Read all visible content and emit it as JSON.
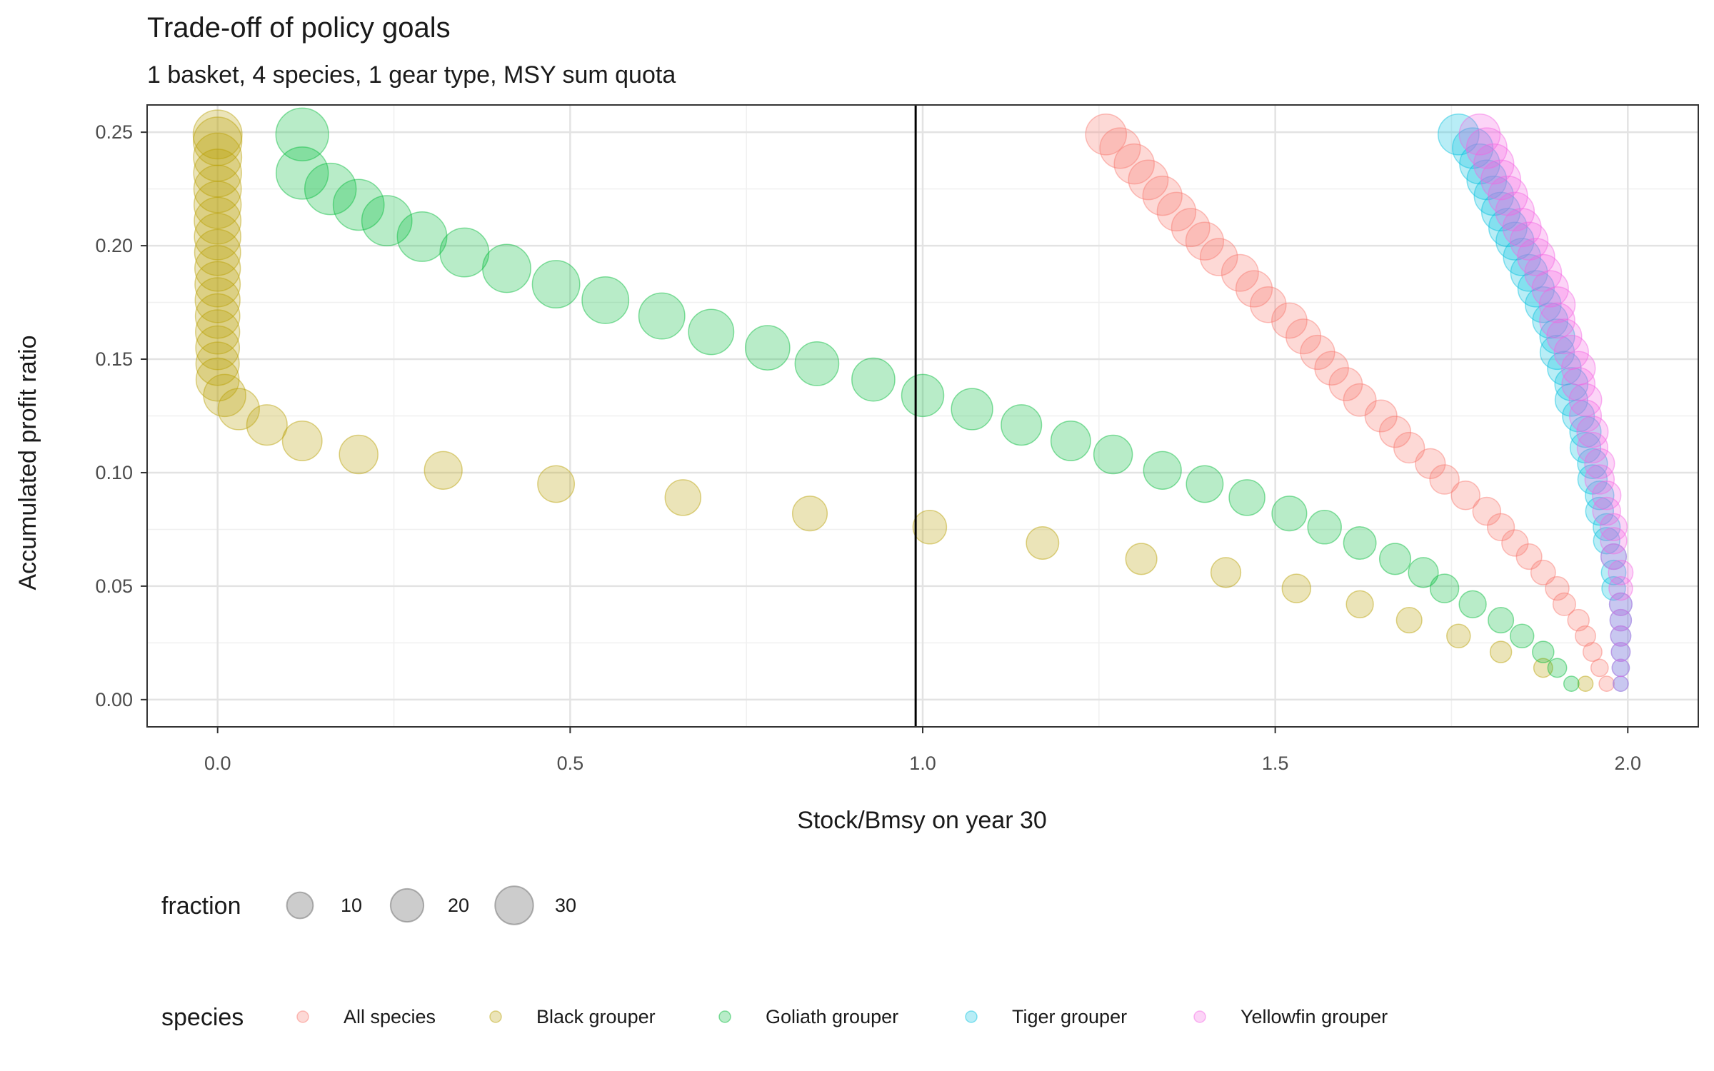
{
  "chart_data": {
    "type": "scatter",
    "title": "Trade-off of policy goals",
    "subtitle": "1 basket, 4 species, 1 gear type, MSY sum quota",
    "xlabel": "Stock/Bmsy on year 30",
    "ylabel": "Accumulated profit ratio",
    "xlim": [
      -0.1,
      2.1
    ],
    "ylim": [
      -0.012,
      0.262
    ],
    "x_ticks": [
      0.0,
      0.5,
      1.0,
      1.5,
      2.0
    ],
    "x_tick_labels": [
      "0.0",
      "0.5",
      "1.0",
      "1.5",
      "2.0"
    ],
    "y_ticks": [
      0.0,
      0.05,
      0.1,
      0.15,
      0.2,
      0.25
    ],
    "y_tick_labels": [
      "0.00",
      "0.05",
      "0.10",
      "0.15",
      "0.20",
      "0.25"
    ],
    "grid": true,
    "reference_line": {
      "orientation": "vertical",
      "x": 0.99,
      "color": "#000000"
    },
    "size_legend": {
      "title": "fraction",
      "values": [
        10,
        20,
        30
      ],
      "labels": [
        "10",
        "20",
        "30"
      ],
      "color": "#7f7f7f",
      "placement": "bottom"
    },
    "series_legend": {
      "title": "species",
      "placement": "bottom"
    },
    "point_opacity": 0.28,
    "series": [
      {
        "name": "All species",
        "color": "#F8766D",
        "points": [
          [
            1.97,
            0.007,
            1
          ],
          [
            1.96,
            0.014,
            2
          ],
          [
            1.95,
            0.021,
            3
          ],
          [
            1.94,
            0.028,
            4
          ],
          [
            1.93,
            0.035,
            5
          ],
          [
            1.91,
            0.042,
            6
          ],
          [
            1.9,
            0.049,
            7
          ],
          [
            1.88,
            0.056,
            8
          ],
          [
            1.86,
            0.063,
            9
          ],
          [
            1.84,
            0.069,
            10
          ],
          [
            1.82,
            0.076,
            11
          ],
          [
            1.8,
            0.083,
            12
          ],
          [
            1.77,
            0.09,
            13
          ],
          [
            1.74,
            0.097,
            14
          ],
          [
            1.72,
            0.104,
            15
          ],
          [
            1.69,
            0.111,
            16
          ],
          [
            1.67,
            0.118,
            17
          ],
          [
            1.65,
            0.125,
            18
          ],
          [
            1.62,
            0.132,
            19
          ],
          [
            1.6,
            0.139,
            20
          ],
          [
            1.58,
            0.146,
            21
          ],
          [
            1.56,
            0.153,
            22
          ],
          [
            1.54,
            0.16,
            23
          ],
          [
            1.52,
            0.167,
            24
          ],
          [
            1.49,
            0.174,
            25
          ],
          [
            1.47,
            0.181,
            26
          ],
          [
            1.45,
            0.188,
            27
          ],
          [
            1.42,
            0.195,
            28
          ],
          [
            1.4,
            0.202,
            29
          ],
          [
            1.38,
            0.208,
            30
          ],
          [
            1.36,
            0.215,
            31
          ],
          [
            1.34,
            0.222,
            32
          ],
          [
            1.32,
            0.229,
            33
          ],
          [
            1.3,
            0.236,
            34
          ],
          [
            1.28,
            0.243,
            35
          ],
          [
            1.26,
            0.249,
            36
          ]
        ]
      },
      {
        "name": "Black grouper",
        "color": "#B79F00",
        "points": [
          [
            1.94,
            0.007,
            1
          ],
          [
            1.88,
            0.014,
            3
          ],
          [
            1.82,
            0.021,
            5
          ],
          [
            1.76,
            0.028,
            7
          ],
          [
            1.69,
            0.035,
            9
          ],
          [
            1.62,
            0.042,
            11
          ],
          [
            1.53,
            0.049,
            13
          ],
          [
            1.43,
            0.056,
            15
          ],
          [
            1.31,
            0.062,
            17
          ],
          [
            1.17,
            0.069,
            19
          ],
          [
            1.01,
            0.076,
            21
          ],
          [
            0.84,
            0.082,
            23
          ],
          [
            0.66,
            0.089,
            25
          ],
          [
            0.48,
            0.095,
            27
          ],
          [
            0.32,
            0.101,
            29
          ],
          [
            0.2,
            0.108,
            31
          ],
          [
            0.12,
            0.114,
            33
          ],
          [
            0.07,
            0.121,
            35
          ],
          [
            0.03,
            0.128,
            37
          ],
          [
            0.01,
            0.134,
            39
          ],
          [
            0.0,
            0.141,
            41
          ],
          [
            0.0,
            0.148,
            42
          ],
          [
            0.0,
            0.155,
            43
          ],
          [
            0.0,
            0.162,
            44
          ],
          [
            0.0,
            0.169,
            45
          ],
          [
            0.0,
            0.176,
            46
          ],
          [
            0.0,
            0.183,
            47
          ],
          [
            0.0,
            0.19,
            48
          ],
          [
            0.0,
            0.197,
            49
          ],
          [
            0.0,
            0.204,
            50
          ],
          [
            0.0,
            0.211,
            51
          ],
          [
            0.0,
            0.218,
            52
          ],
          [
            0.0,
            0.225,
            53
          ],
          [
            0.0,
            0.232,
            54
          ],
          [
            0.0,
            0.239,
            55
          ],
          [
            0.0,
            0.246,
            56
          ],
          [
            0.0,
            0.249,
            57
          ]
        ]
      },
      {
        "name": "Goliath grouper",
        "color": "#00BA38",
        "points": [
          [
            1.92,
            0.007,
            1
          ],
          [
            1.9,
            0.014,
            3
          ],
          [
            1.88,
            0.021,
            5
          ],
          [
            1.85,
            0.028,
            7
          ],
          [
            1.82,
            0.035,
            9
          ],
          [
            1.78,
            0.042,
            11
          ],
          [
            1.74,
            0.049,
            13
          ],
          [
            1.71,
            0.056,
            15
          ],
          [
            1.67,
            0.062,
            17
          ],
          [
            1.62,
            0.069,
            19
          ],
          [
            1.57,
            0.076,
            21
          ],
          [
            1.52,
            0.082,
            23
          ],
          [
            1.46,
            0.089,
            25
          ],
          [
            1.4,
            0.095,
            27
          ],
          [
            1.34,
            0.101,
            29
          ],
          [
            1.27,
            0.108,
            31
          ],
          [
            1.21,
            0.114,
            33
          ],
          [
            1.14,
            0.121,
            35
          ],
          [
            1.07,
            0.128,
            37
          ],
          [
            1.0,
            0.134,
            39
          ],
          [
            0.93,
            0.141,
            41
          ],
          [
            0.85,
            0.148,
            43
          ],
          [
            0.78,
            0.155,
            45
          ],
          [
            0.7,
            0.162,
            47
          ],
          [
            0.63,
            0.169,
            49
          ],
          [
            0.55,
            0.176,
            51
          ],
          [
            0.48,
            0.183,
            53
          ],
          [
            0.41,
            0.19,
            55
          ],
          [
            0.35,
            0.197,
            57
          ],
          [
            0.29,
            0.204,
            59
          ],
          [
            0.24,
            0.211,
            61
          ],
          [
            0.2,
            0.218,
            63
          ],
          [
            0.16,
            0.225,
            65
          ],
          [
            0.12,
            0.232,
            67
          ],
          [
            0.12,
            0.249,
            69
          ]
        ]
      },
      {
        "name": "Tiger grouper",
        "color": "#00C0DE",
        "points": [
          [
            1.99,
            0.007,
            1
          ],
          [
            1.99,
            0.014,
            2
          ],
          [
            1.99,
            0.021,
            3
          ],
          [
            1.99,
            0.028,
            4
          ],
          [
            1.99,
            0.035,
            5
          ],
          [
            1.99,
            0.042,
            6
          ],
          [
            1.98,
            0.049,
            7
          ],
          [
            1.98,
            0.056,
            8
          ],
          [
            1.98,
            0.063,
            9
          ],
          [
            1.97,
            0.07,
            10
          ],
          [
            1.97,
            0.076,
            11
          ],
          [
            1.96,
            0.083,
            12
          ],
          [
            1.96,
            0.09,
            13
          ],
          [
            1.95,
            0.097,
            14
          ],
          [
            1.95,
            0.104,
            15
          ],
          [
            1.94,
            0.111,
            16
          ],
          [
            1.94,
            0.118,
            17
          ],
          [
            1.93,
            0.125,
            18
          ],
          [
            1.92,
            0.132,
            19
          ],
          [
            1.92,
            0.139,
            20
          ],
          [
            1.91,
            0.146,
            21
          ],
          [
            1.9,
            0.153,
            22
          ],
          [
            1.9,
            0.16,
            23
          ],
          [
            1.89,
            0.167,
            24
          ],
          [
            1.88,
            0.174,
            25
          ],
          [
            1.87,
            0.181,
            26
          ],
          [
            1.86,
            0.188,
            27
          ],
          [
            1.85,
            0.195,
            28
          ],
          [
            1.84,
            0.202,
            29
          ],
          [
            1.83,
            0.208,
            30
          ],
          [
            1.82,
            0.215,
            31
          ],
          [
            1.81,
            0.222,
            32
          ],
          [
            1.8,
            0.229,
            33
          ],
          [
            1.79,
            0.236,
            34
          ],
          [
            1.78,
            0.243,
            35
          ],
          [
            1.76,
            0.249,
            36
          ]
        ]
      },
      {
        "name": "Yellowfin grouper",
        "color": "#F564E3",
        "points": [
          [
            1.99,
            0.007,
            1
          ],
          [
            1.99,
            0.014,
            2
          ],
          [
            1.99,
            0.021,
            3
          ],
          [
            1.99,
            0.028,
            4
          ],
          [
            1.99,
            0.035,
            5
          ],
          [
            1.99,
            0.042,
            6
          ],
          [
            1.99,
            0.049,
            7
          ],
          [
            1.99,
            0.056,
            8
          ],
          [
            1.98,
            0.063,
            9
          ],
          [
            1.98,
            0.07,
            10
          ],
          [
            1.98,
            0.076,
            11
          ],
          [
            1.97,
            0.083,
            12
          ],
          [
            1.97,
            0.09,
            13
          ],
          [
            1.96,
            0.097,
            14
          ],
          [
            1.96,
            0.104,
            15
          ],
          [
            1.95,
            0.111,
            16
          ],
          [
            1.95,
            0.118,
            17
          ],
          [
            1.94,
            0.125,
            18
          ],
          [
            1.94,
            0.132,
            19
          ],
          [
            1.93,
            0.139,
            20
          ],
          [
            1.93,
            0.146,
            21
          ],
          [
            1.92,
            0.153,
            22
          ],
          [
            1.91,
            0.16,
            23
          ],
          [
            1.9,
            0.167,
            24
          ],
          [
            1.9,
            0.174,
            25
          ],
          [
            1.89,
            0.181,
            26
          ],
          [
            1.88,
            0.188,
            27
          ],
          [
            1.87,
            0.195,
            28
          ],
          [
            1.86,
            0.202,
            29
          ],
          [
            1.85,
            0.208,
            30
          ],
          [
            1.84,
            0.215,
            31
          ],
          [
            1.83,
            0.222,
            32
          ],
          [
            1.82,
            0.229,
            33
          ],
          [
            1.81,
            0.236,
            34
          ],
          [
            1.8,
            0.243,
            35
          ],
          [
            1.79,
            0.249,
            36
          ]
        ]
      }
    ]
  }
}
